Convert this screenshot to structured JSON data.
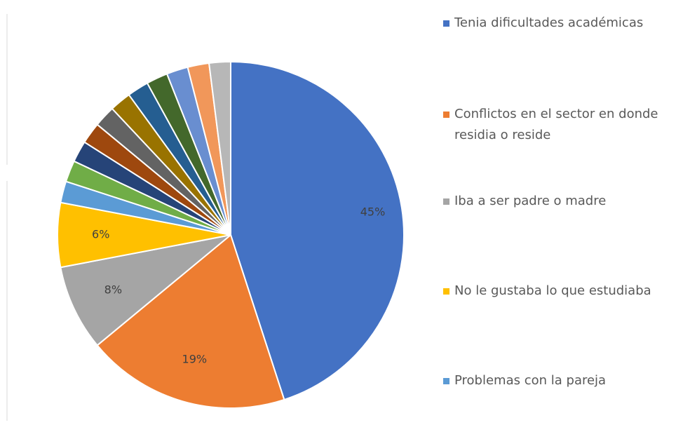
{
  "chart_data": {
    "type": "pie",
    "categories": [
      "Tenia dificultades académicas",
      "Conflictos en el sector en donde residia o reside",
      "Iba a ser padre o madre",
      "No le gustaba lo que estudiaba",
      "Problemas con la pareja",
      null,
      null,
      null,
      null,
      null,
      null,
      null,
      null,
      null,
      null
    ],
    "values": [
      45,
      19,
      8,
      6,
      2,
      2,
      2,
      2,
      2,
      2,
      2,
      2,
      2,
      2,
      2
    ],
    "value_labels": [
      "45%",
      "19%",
      "8%",
      "6%",
      null,
      null,
      null,
      null,
      null,
      null,
      null,
      null,
      null,
      null,
      null
    ],
    "colors": [
      "#4472c4",
      "#ed7d31",
      "#a5a5a5",
      "#ffc000",
      "#5b9bd5",
      "#70ad47",
      "#264478",
      "#9e480e",
      "#636363",
      "#997300",
      "#255e91",
      "#43682b",
      "#698ed0",
      "#f1975a",
      "#b7b7b7"
    ]
  }
}
